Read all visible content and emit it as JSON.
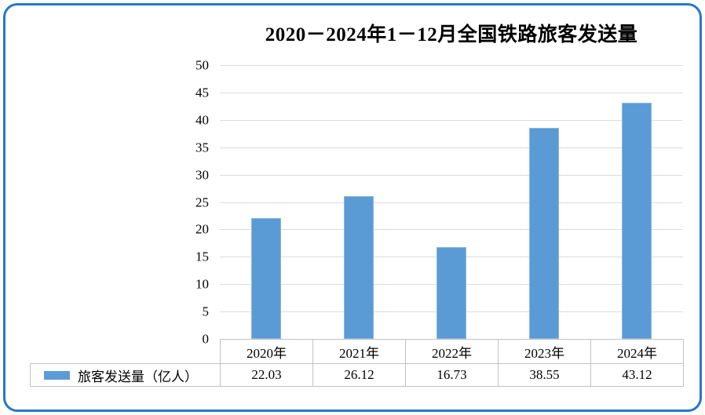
{
  "window": {
    "frame_border_color": "#2478C8",
    "background_color": "#ffffff"
  },
  "chart_data": {
    "type": "bar",
    "title": "2020－2024年1－12月全国铁路旅客发送量",
    "categories": [
      "2020年",
      "2021年",
      "2022年",
      "2023年",
      "2024年"
    ],
    "series": [
      {
        "name": "旅客发送量（亿人）",
        "values": [
          22.03,
          26.12,
          16.73,
          38.55,
          43.12
        ]
      }
    ],
    "value_labels": [
      "22.03",
      "26.12",
      "16.73",
      "38.55",
      "43.12"
    ],
    "xlabel": "",
    "ylabel": "",
    "ylim": [
      0,
      50
    ],
    "yticks": [
      0,
      5,
      10,
      15,
      20,
      25,
      30,
      35,
      40,
      45,
      50
    ],
    "grid": true,
    "legend_position": "bottom-table",
    "bar_color": "#5B9BD5",
    "gridline_color": "#DCDCDC",
    "table_border_color": "#C2C2C2"
  }
}
